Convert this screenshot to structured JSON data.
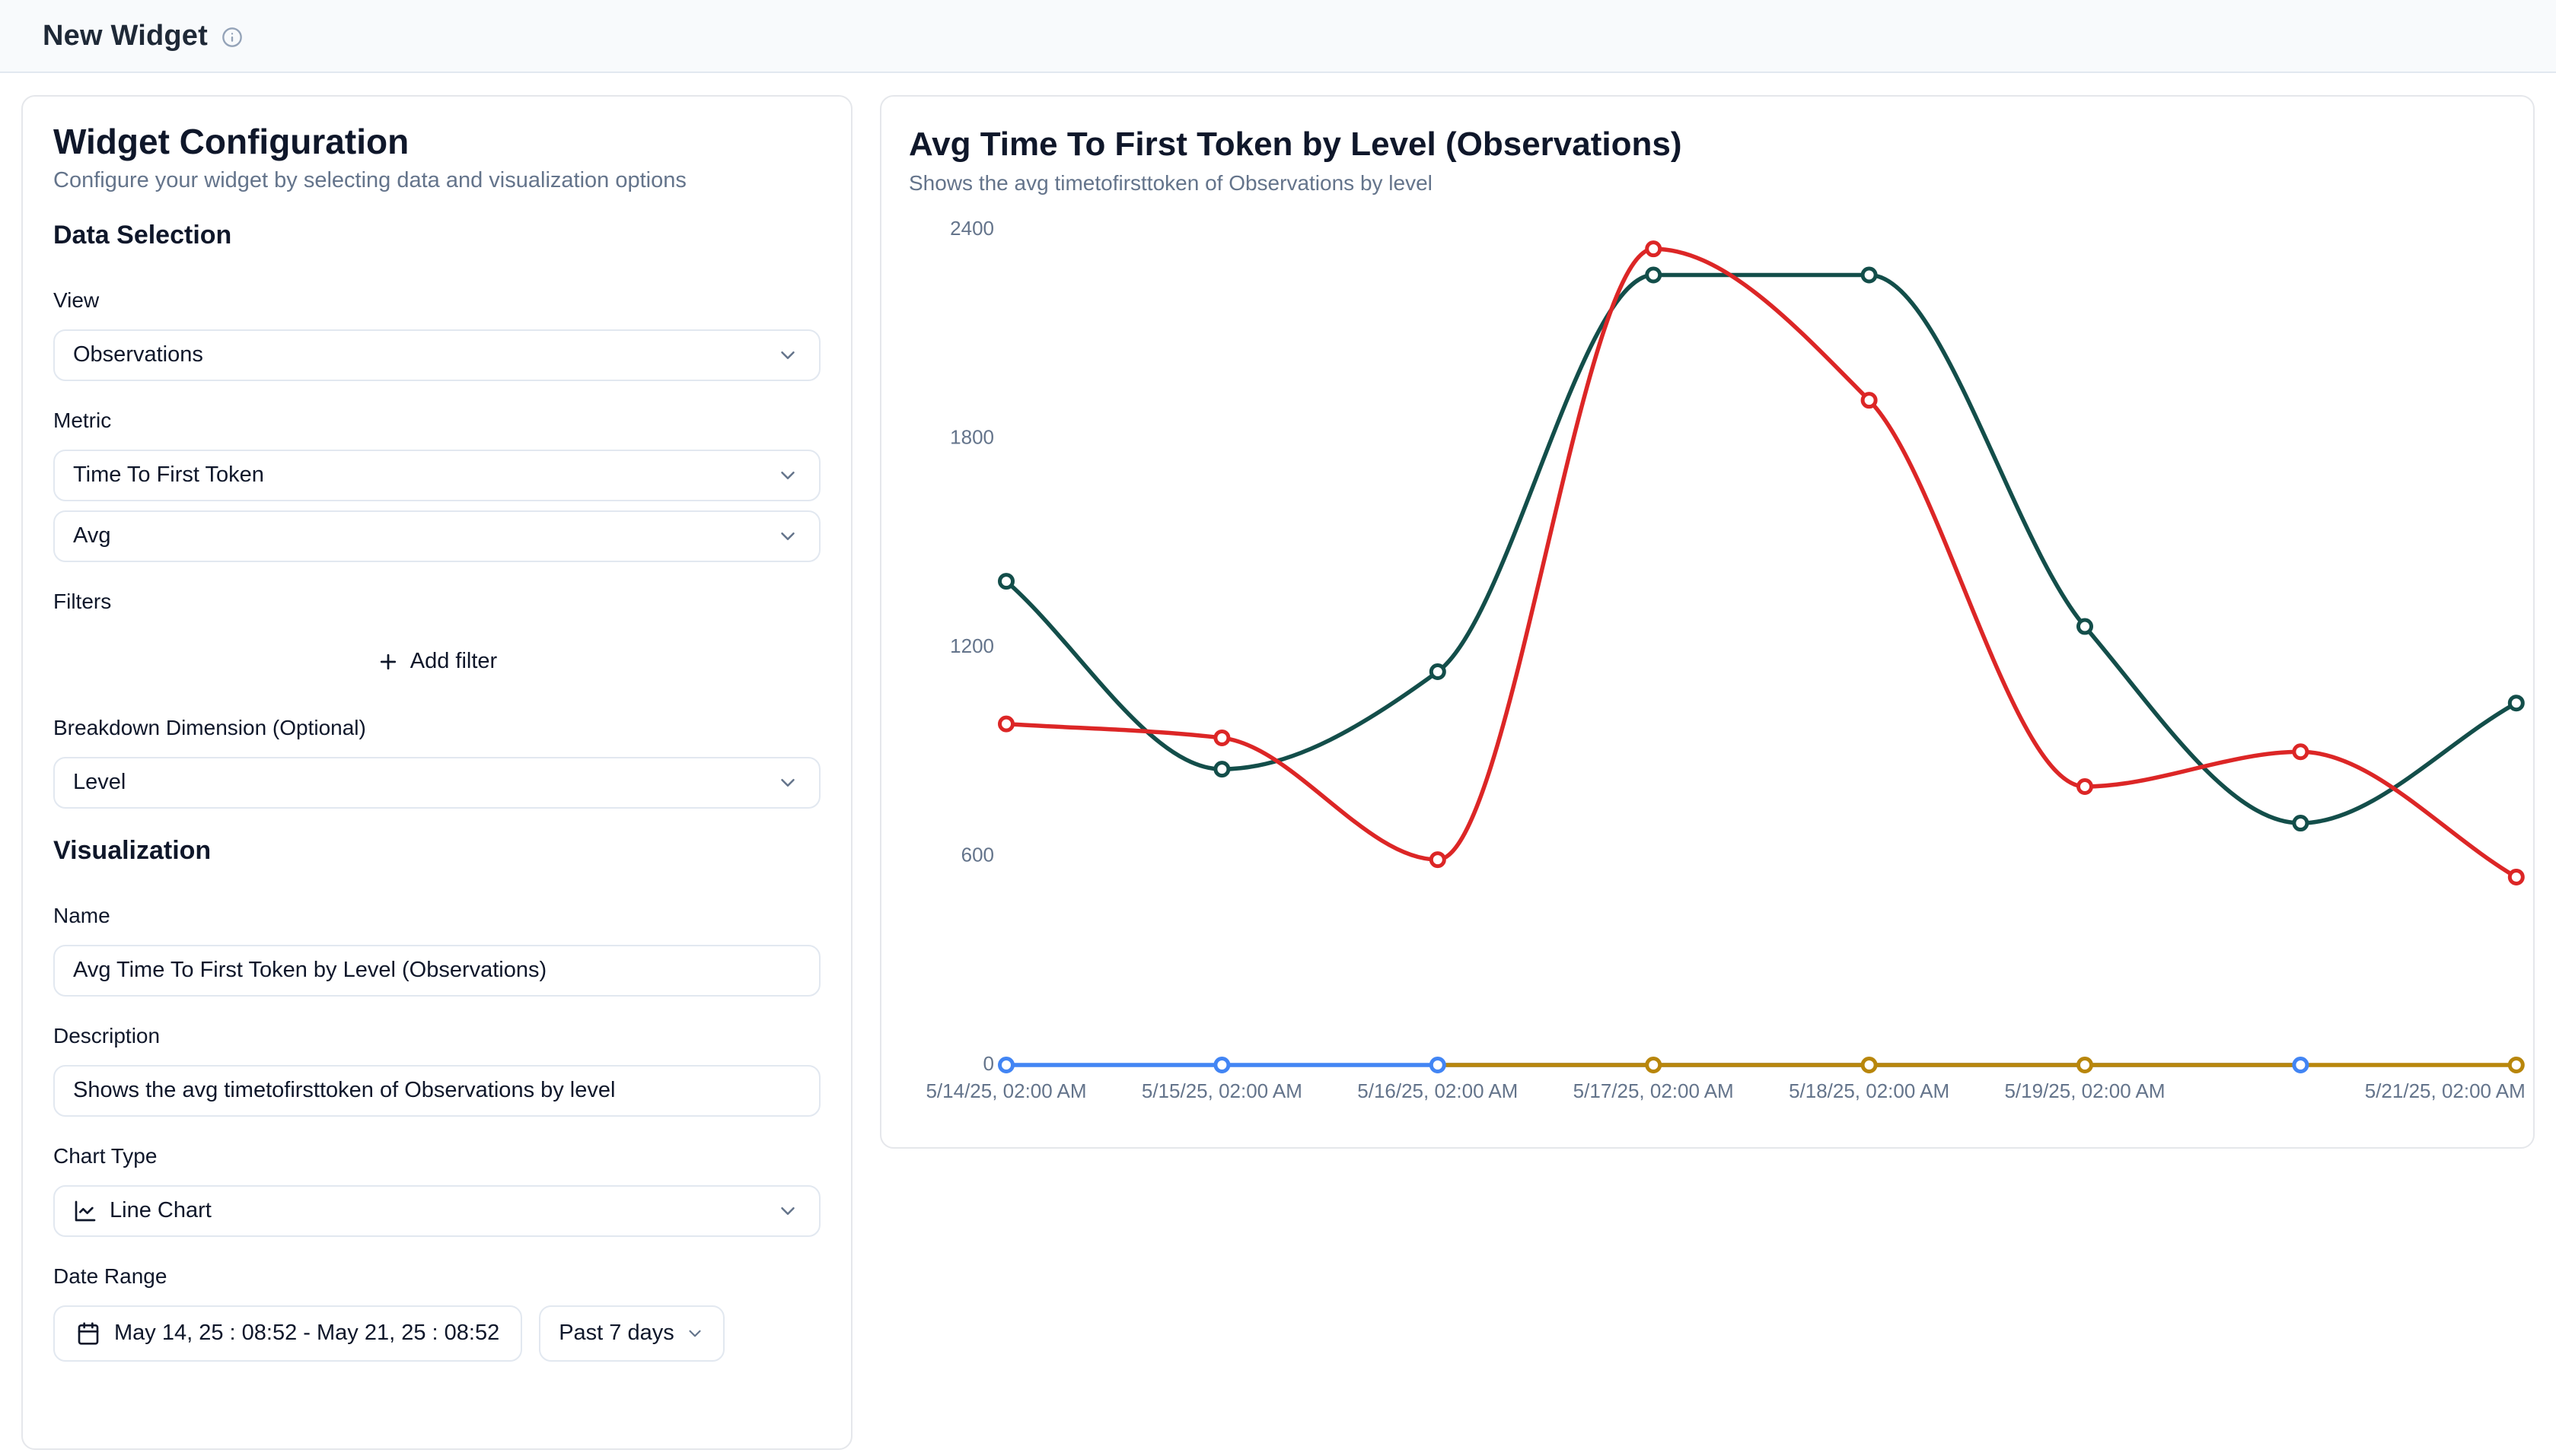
{
  "header": {
    "title": "New Widget",
    "info_icon": "info-icon"
  },
  "config_panel": {
    "title": "Widget Configuration",
    "subtitle": "Configure your widget by selecting data and visualization options",
    "data_selection_heading": "Data Selection",
    "view": {
      "label": "View",
      "value": "Observations"
    },
    "metric": {
      "label": "Metric",
      "value": "Time To First Token",
      "aggregation": "Avg"
    },
    "filters": {
      "label": "Filters",
      "add_button": "Add filter",
      "add_icon": "plus-icon"
    },
    "breakdown": {
      "label": "Breakdown Dimension (Optional)",
      "value": "Level"
    },
    "visualization_heading": "Visualization",
    "name_field": {
      "label": "Name",
      "value": "Avg Time To First Token by Level (Observations)"
    },
    "description_field": {
      "label": "Description",
      "value": "Shows the avg timetofirsttoken of Observations by level"
    },
    "chart_type": {
      "label": "Chart Type",
      "value": "Line Chart",
      "icon": "line-chart-icon"
    },
    "date_range": {
      "label": "Date Range",
      "value": "May 14, 25 : 08:52 - May 21, 25 : 08:52",
      "preset": "Past 7 days",
      "calendar_icon": "calendar-icon"
    }
  },
  "chart_panel": {
    "title": "Avg Time To First Token by Level (Observations)",
    "subtitle": "Shows the avg timetofirsttoken of Observations by level"
  },
  "chart_data": {
    "type": "line",
    "title": "Avg Time To First Token by Level (Observations)",
    "xlabel": "",
    "ylabel": "",
    "ylim": [
      0,
      2400
    ],
    "yticks": [
      0,
      600,
      1200,
      1800,
      2400
    ],
    "grid": false,
    "legend": false,
    "x_ticks": [
      "5/14/25, 02:00 AM",
      "5/15/25, 02:00 AM",
      "5/16/25, 02:00 AM",
      "5/17/25, 02:00 AM",
      "5/18/25, 02:00 AM",
      "5/19/25, 02:00 AM",
      "",
      "5/21/25, 02:00 AM"
    ],
    "series": [
      {
        "id": "series-teal",
        "color": "#134e4a",
        "points": [
          [
            0,
            1390
          ],
          [
            1,
            850
          ],
          [
            2,
            1130
          ],
          [
            3,
            2270
          ],
          [
            4,
            2270
          ],
          [
            5,
            1260
          ],
          [
            6,
            695
          ],
          [
            7,
            1040
          ]
        ]
      },
      {
        "id": "series-red",
        "color": "#dc2626",
        "points": [
          [
            0,
            980
          ],
          [
            1,
            940
          ],
          [
            2,
            590
          ],
          [
            3,
            2345
          ],
          [
            4,
            1910
          ],
          [
            5,
            800
          ],
          [
            6,
            900
          ],
          [
            7,
            540
          ]
        ]
      },
      {
        "id": "series-blue",
        "color": "#4285f4",
        "points": [
          [
            0,
            0
          ],
          [
            1,
            0
          ],
          [
            2,
            0
          ],
          [
            6,
            0
          ]
        ]
      },
      {
        "id": "series-gold",
        "color": "#b8860b",
        "points": [
          [
            2,
            0,
            0
          ],
          [
            3,
            0
          ],
          [
            4,
            0
          ],
          [
            5,
            0
          ],
          [
            7,
            0
          ]
        ]
      }
    ]
  }
}
